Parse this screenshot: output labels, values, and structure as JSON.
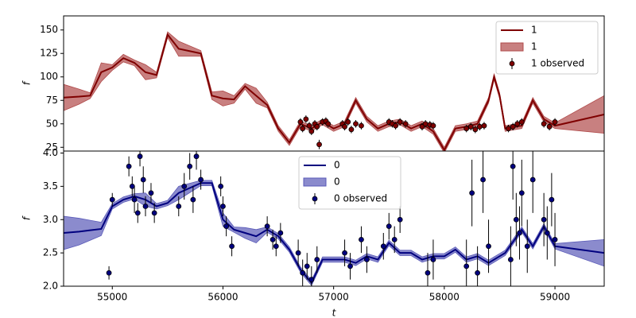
{
  "chart_data": [
    {
      "type": "line",
      "ylabel": "f",
      "legend": "upper right",
      "xlim": [
        54560,
        59445
      ],
      "ylim": [
        21,
        165
      ],
      "yticks": [
        25,
        50,
        75,
        100,
        125,
        150
      ],
      "x": [
        54560,
        54700,
        54800,
        54900,
        55000,
        55100,
        55200,
        55300,
        55400,
        55500,
        55600,
        55800,
        55900,
        56000,
        56100,
        56200,
        56300,
        56400,
        56500,
        56600,
        56700,
        56800,
        56900,
        57000,
        57100,
        57200,
        57300,
        57400,
        57500,
        57600,
        57700,
        57800,
        57900,
        58000,
        58100,
        58200,
        58300,
        58400,
        58450,
        58500,
        58550,
        58700,
        58800,
        58900,
        59000,
        59445
      ],
      "series": [
        {
          "name": "1",
          "color": "#7f0000",
          "values": [
            78,
            79,
            80,
            105,
            110,
            120,
            115,
            105,
            102,
            145,
            130,
            125,
            80,
            77,
            76,
            90,
            80,
            70,
            45,
            30,
            50,
            45,
            52,
            45,
            50,
            75,
            55,
            45,
            50,
            52,
            45,
            50,
            42,
            22,
            45,
            47,
            50,
            75,
            100,
            80,
            45,
            48,
            75,
            55,
            48,
            60
          ]
        },
        {
          "name": "1",
          "color": "#b04a4a",
          "lower": [
            64,
            71,
            77,
            95,
            107,
            116,
            112,
            97,
            99,
            142,
            122,
            122,
            76,
            69,
            72,
            87,
            72,
            67,
            42,
            27,
            47,
            42,
            49,
            42,
            47,
            72,
            52,
            42,
            47,
            49,
            42,
            47,
            39,
            19,
            42,
            44,
            47,
            72,
            97,
            77,
            42,
            45,
            72,
            52,
            45,
            40
          ],
          "upper": [
            92,
            87,
            83,
            115,
            113,
            124,
            118,
            113,
            105,
            148,
            138,
            128,
            84,
            85,
            80,
            93,
            88,
            73,
            48,
            33,
            53,
            48,
            55,
            48,
            53,
            78,
            58,
            48,
            53,
            55,
            48,
            53,
            45,
            25,
            48,
            50,
            53,
            78,
            103,
            83,
            48,
            51,
            78,
            58,
            51,
            80
          ]
        },
        {
          "name": "1 observed",
          "color": "#7f0000",
          "x": [
            56700,
            56720,
            56750,
            56780,
            56800,
            56830,
            56850,
            56870,
            56900,
            56930,
            56950,
            57080,
            57100,
            57130,
            57160,
            57200,
            57250,
            57500,
            57530,
            57560,
            57600,
            57650,
            57800,
            57830,
            57870,
            57900,
            58200,
            58240,
            58280,
            58320,
            58360,
            58580,
            58620,
            58660,
            58700,
            58900,
            58950,
            59000
          ],
          "values": [
            52,
            45,
            55,
            48,
            42,
            50,
            47,
            28,
            52,
            53,
            50,
            50,
            47,
            52,
            44,
            50,
            48,
            52,
            50,
            48,
            52,
            50,
            47,
            50,
            49,
            48,
            45,
            47,
            44,
            47,
            48,
            45,
            47,
            50,
            52,
            50,
            47,
            52
          ],
          "errors": [
            4,
            4,
            4,
            4,
            4,
            4,
            4,
            5,
            4,
            4,
            4,
            4,
            4,
            4,
            4,
            4,
            4,
            4,
            4,
            4,
            4,
            4,
            4,
            4,
            4,
            4,
            4,
            4,
            4,
            4,
            4,
            4,
            4,
            4,
            4,
            4,
            4,
            4
          ]
        }
      ]
    },
    {
      "type": "line",
      "ylabel": "f",
      "xlabel": "t",
      "legend": "upper center",
      "xlim": [
        54560,
        59445
      ],
      "ylim": [
        2.0,
        4.03
      ],
      "xticks": [
        55000,
        56000,
        57000,
        58000,
        59000
      ],
      "yticks": [
        {
          "value": 2,
          "label": "2.0"
        },
        2.5,
        {
          "value": 3,
          "label": "3.0"
        },
        3.5,
        {
          "value": 4,
          "label": "4.0"
        }
      ],
      "x": [
        54560,
        54700,
        54800,
        54900,
        55000,
        55100,
        55200,
        55300,
        55400,
        55500,
        55600,
        55800,
        55900,
        56000,
        56100,
        56200,
        56300,
        56400,
        56500,
        56600,
        56700,
        56800,
        56900,
        57000,
        57100,
        57200,
        57300,
        57400,
        57500,
        57600,
        57700,
        57800,
        57900,
        58000,
        58100,
        58200,
        58300,
        58400,
        58450,
        58500,
        58550,
        58700,
        58800,
        58900,
        59000,
        59445
      ],
      "series": [
        {
          "name": "0",
          "color": "#00007f",
          "values": [
            2.8,
            2.82,
            2.84,
            2.86,
            3.2,
            3.3,
            3.35,
            3.3,
            3.2,
            3.25,
            3.4,
            3.55,
            3.55,
            3.0,
            2.85,
            2.8,
            2.75,
            2.85,
            2.75,
            2.55,
            2.25,
            2.05,
            2.4,
            2.4,
            2.4,
            2.35,
            2.45,
            2.4,
            2.65,
            2.5,
            2.5,
            2.4,
            2.45,
            2.45,
            2.55,
            2.4,
            2.45,
            2.35,
            2.4,
            2.45,
            2.5,
            2.85,
            2.6,
            2.9,
            2.6,
            2.5
          ]
        },
        {
          "name": "0",
          "color": "#5a5ab8",
          "lower": [
            2.55,
            2.62,
            2.69,
            2.76,
            3.16,
            3.26,
            3.31,
            3.2,
            3.16,
            3.21,
            3.3,
            3.51,
            3.51,
            2.9,
            2.81,
            2.72,
            2.65,
            2.81,
            2.71,
            2.51,
            2.21,
            2.01,
            2.36,
            2.36,
            2.36,
            2.31,
            2.41,
            2.36,
            2.61,
            2.46,
            2.46,
            2.36,
            2.41,
            2.41,
            2.51,
            2.36,
            2.41,
            2.31,
            2.36,
            2.41,
            2.46,
            2.81,
            2.56,
            2.86,
            2.56,
            2.3
          ],
          "upper": [
            3.05,
            3.02,
            2.99,
            2.96,
            3.24,
            3.34,
            3.39,
            3.4,
            3.24,
            3.29,
            3.5,
            3.59,
            3.59,
            3.1,
            2.89,
            2.88,
            2.85,
            2.89,
            2.79,
            2.59,
            2.29,
            2.09,
            2.44,
            2.44,
            2.44,
            2.39,
            2.49,
            2.44,
            2.69,
            2.54,
            2.54,
            2.44,
            2.49,
            2.49,
            2.59,
            2.44,
            2.49,
            2.39,
            2.44,
            2.49,
            2.54,
            2.89,
            2.64,
            2.94,
            2.64,
            2.7
          ]
        },
        {
          "name": "0 observed",
          "color": "#00007f",
          "x": [
            54970,
            55000,
            55150,
            55180,
            55200,
            55230,
            55250,
            55280,
            55300,
            55350,
            55380,
            55600,
            55650,
            55700,
            55730,
            55760,
            55800,
            55980,
            56000,
            56030,
            56080,
            56400,
            56450,
            56480,
            56520,
            56680,
            56720,
            56760,
            56800,
            56850,
            57100,
            57150,
            57250,
            57300,
            57450,
            57500,
            57550,
            57600,
            57850,
            57900,
            58200,
            58250,
            58300,
            58350,
            58400,
            58600,
            58620,
            58650,
            58680,
            58700,
            58750,
            58800,
            58900,
            58930,
            58970,
            59000
          ],
          "values": [
            2.2,
            3.3,
            3.8,
            3.5,
            3.3,
            3.1,
            3.95,
            3.6,
            3.2,
            3.4,
            3.1,
            3.2,
            3.5,
            3.8,
            3.3,
            3.95,
            3.6,
            3.5,
            3.2,
            2.9,
            2.6,
            2.9,
            2.7,
            2.6,
            2.8,
            2.5,
            2.2,
            2.3,
            2.1,
            2.4,
            2.5,
            2.3,
            2.7,
            2.4,
            2.6,
            2.9,
            2.7,
            3.0,
            2.2,
            2.4,
            2.3,
            3.4,
            2.2,
            3.6,
            2.6,
            2.4,
            3.8,
            3.0,
            2.8,
            3.4,
            2.6,
            3.6,
            3.0,
            2.8,
            3.3,
            2.7
          ],
          "errors": [
            0.1,
            0.1,
            0.15,
            0.15,
            0.2,
            0.15,
            0.15,
            0.2,
            0.15,
            0.15,
            0.15,
            0.15,
            0.2,
            0.2,
            0.2,
            0.2,
            0.15,
            0.15,
            0.15,
            0.15,
            0.15,
            0.15,
            0.15,
            0.15,
            0.15,
            0.2,
            0.2,
            0.2,
            0.2,
            0.2,
            0.2,
            0.2,
            0.2,
            0.2,
            0.2,
            0.2,
            0.2,
            0.2,
            0.3,
            0.3,
            0.4,
            0.5,
            0.4,
            0.5,
            0.4,
            0.5,
            0.5,
            0.4,
            0.4,
            0.5,
            0.4,
            0.5,
            0.4,
            0.4,
            0.4,
            0.4
          ]
        }
      ]
    }
  ]
}
